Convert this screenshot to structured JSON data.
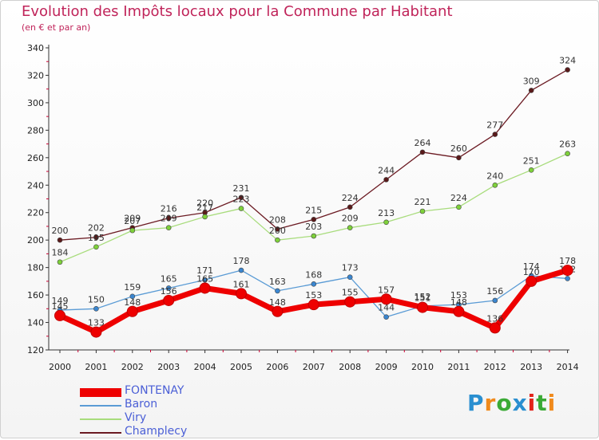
{
  "title": "Evolution des Impôts locaux pour la Commune par Habitant",
  "subtitle": "(en € et par an)",
  "logo": {
    "text": "Proxiti",
    "letter_colors": [
      "#2a8fd0",
      "#f08a1c",
      "#3aaa35",
      "#2a8fd0",
      "#e2231a",
      "#3aaa35",
      "#f08a1c"
    ]
  },
  "chart_data": {
    "type": "line",
    "title": "Evolution des Impôts locaux pour la Commune par Habitant",
    "subtitle": "(en € et par an)",
    "x": [
      "2000",
      "2001",
      "2002",
      "2003",
      "2004",
      "2005",
      "2006",
      "2007",
      "2008",
      "2009",
      "2010",
      "2011",
      "2012",
      "2013",
      "2014"
    ],
    "ylim": [
      120,
      340
    ],
    "yticks": [
      120,
      140,
      160,
      180,
      200,
      220,
      240,
      260,
      280,
      300,
      320,
      340
    ],
    "grid": false,
    "legend": "bottom-left",
    "series": [
      {
        "name": "Champlecy",
        "color": "#6b1a22",
        "marker": "#5a1a1a",
        "values": [
          200,
          202,
          209,
          216,
          220,
          231,
          208,
          215,
          224,
          244,
          264,
          260,
          277,
          309,
          324
        ]
      },
      {
        "name": "Viry",
        "color": "#a8dc7c",
        "marker": "#7ed13a",
        "values": [
          184,
          195,
          207,
          209,
          217,
          223,
          200,
          203,
          209,
          213,
          221,
          224,
          240,
          251,
          263
        ]
      },
      {
        "name": "Baron",
        "color": "#5a9bd5",
        "marker": "#3a86d0",
        "values": [
          149,
          150,
          159,
          165,
          171,
          178,
          163,
          168,
          173,
          144,
          152,
          153,
          156,
          174,
          172
        ]
      },
      {
        "name": "FONTENAY",
        "color": "#ee0000",
        "marker": "#ee0000",
        "values": [
          145,
          133,
          148,
          156,
          165,
          161,
          148,
          153,
          155,
          157,
          151,
          148,
          136,
          170,
          178
        ]
      }
    ]
  }
}
